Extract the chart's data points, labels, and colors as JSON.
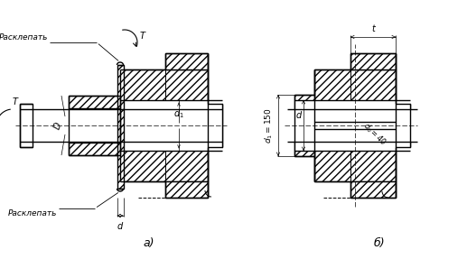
{
  "bg_color": "#ffffff",
  "line_color": "#000000",
  "label_a": "а)",
  "label_b": "б)",
  "text_rasklep1": "Расклепать",
  "text_rasklep2": "Расклепать",
  "text_T": "T",
  "text_d": "d",
  "text_D": "D",
  "text_d1": "d₁",
  "text_d1_val": "d₁ = 150",
  "text_d0_val": "d₀= 40",
  "text_t": "t",
  "figsize": [
    5.17,
    2.87
  ],
  "dpi": 100
}
